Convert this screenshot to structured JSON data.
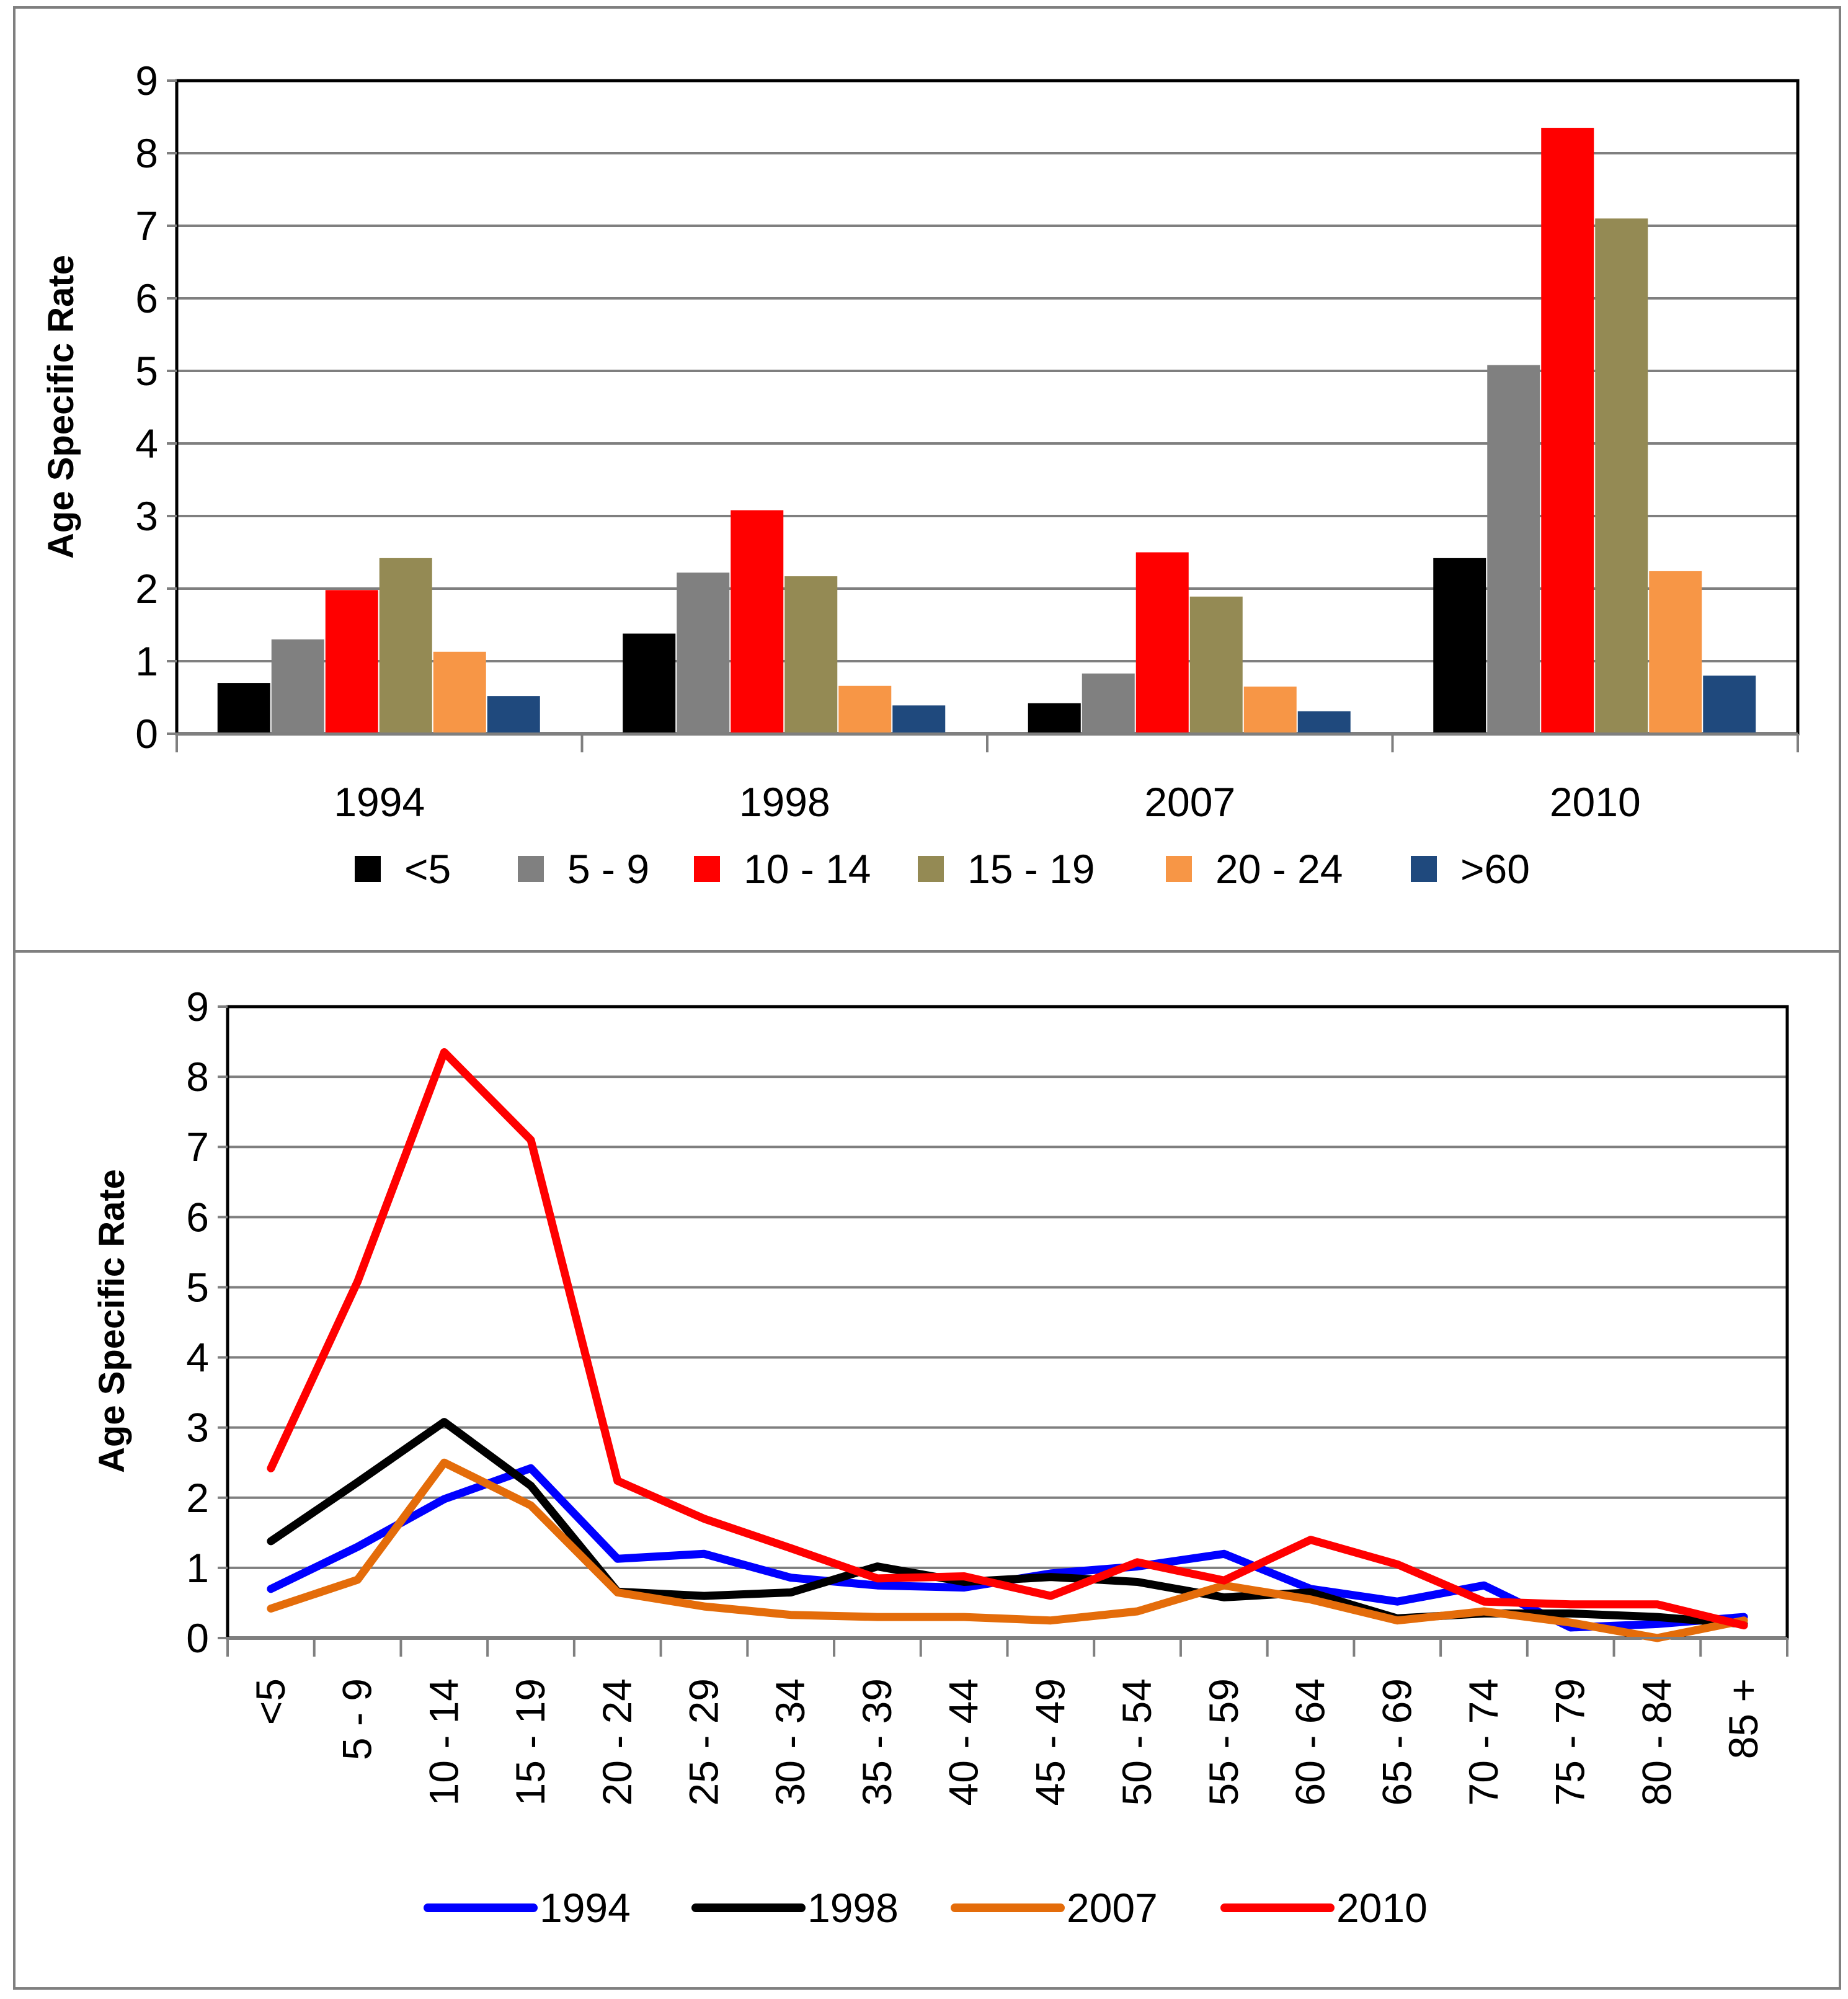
{
  "chart_data": [
    {
      "type": "bar",
      "ylabel": "Age Specific Rate",
      "ylim": [
        0,
        9
      ],
      "yticks": [
        0,
        1,
        2,
        3,
        4,
        5,
        6,
        7,
        8,
        9
      ],
      "grid": true,
      "legend": "bottom",
      "categories": [
        "1994",
        "1998",
        "2007",
        "2010"
      ],
      "series": [
        {
          "name": "<5",
          "color": "#000000",
          "values": [
            0.7,
            1.38,
            0.42,
            2.42
          ]
        },
        {
          "name": "5 - 9",
          "color": "#808080",
          "values": [
            1.3,
            2.22,
            0.83,
            5.08
          ]
        },
        {
          "name": "10 - 14",
          "color": "#ff0000",
          "values": [
            1.98,
            3.08,
            2.5,
            8.35
          ]
        },
        {
          "name": "15 - 19",
          "color": "#948a54",
          "values": [
            2.42,
            2.17,
            1.89,
            7.1
          ]
        },
        {
          "name": "20 - 24",
          "color": "#f79646",
          "values": [
            1.13,
            0.66,
            0.65,
            2.24
          ]
        },
        {
          "name": ">60",
          "color": "#1f497d",
          "values": [
            0.52,
            0.39,
            0.31,
            0.8
          ]
        }
      ]
    },
    {
      "type": "line",
      "ylabel": "Age Specific Rate",
      "ylim": [
        0,
        9
      ],
      "yticks": [
        0,
        1,
        2,
        3,
        4,
        5,
        6,
        7,
        8,
        9
      ],
      "grid": true,
      "legend": "bottom",
      "categories": [
        "<5",
        "5 - 9",
        "10 - 14",
        "15 - 19",
        "20 - 24",
        "25 - 29",
        "30 - 34",
        "35 - 39",
        "40 - 44",
        "45 - 49",
        "50 - 54",
        "55 - 59",
        "60 - 64",
        "65 - 69",
        "70 - 74",
        "75 - 79",
        "80 - 84",
        "85 +"
      ],
      "series": [
        {
          "name": "1994",
          "color": "#0000ff",
          "values": [
            0.7,
            1.3,
            1.98,
            2.42,
            1.13,
            1.2,
            0.86,
            0.75,
            0.72,
            0.92,
            1.02,
            1.2,
            0.7,
            0.52,
            0.75,
            0.15,
            0.2,
            0.3
          ]
        },
        {
          "name": "1998",
          "color": "#000000",
          "values": [
            1.38,
            2.22,
            3.08,
            2.17,
            0.66,
            0.6,
            0.65,
            1.02,
            0.8,
            0.87,
            0.8,
            0.58,
            0.65,
            0.28,
            0.35,
            0.35,
            0.3,
            0.2
          ]
        },
        {
          "name": "2007",
          "color": "#e46c0a",
          "values": [
            0.42,
            0.83,
            2.5,
            1.89,
            0.65,
            0.45,
            0.33,
            0.3,
            0.3,
            0.25,
            0.38,
            0.75,
            0.55,
            0.25,
            0.38,
            0.22,
            0.0,
            0.25
          ]
        },
        {
          "name": "2010",
          "color": "#ff0000",
          "values": [
            2.42,
            5.08,
            8.35,
            7.1,
            2.24,
            1.7,
            1.28,
            0.85,
            0.88,
            0.6,
            1.08,
            0.82,
            1.4,
            1.05,
            0.52,
            0.48,
            0.48,
            0.18
          ]
        }
      ]
    }
  ]
}
